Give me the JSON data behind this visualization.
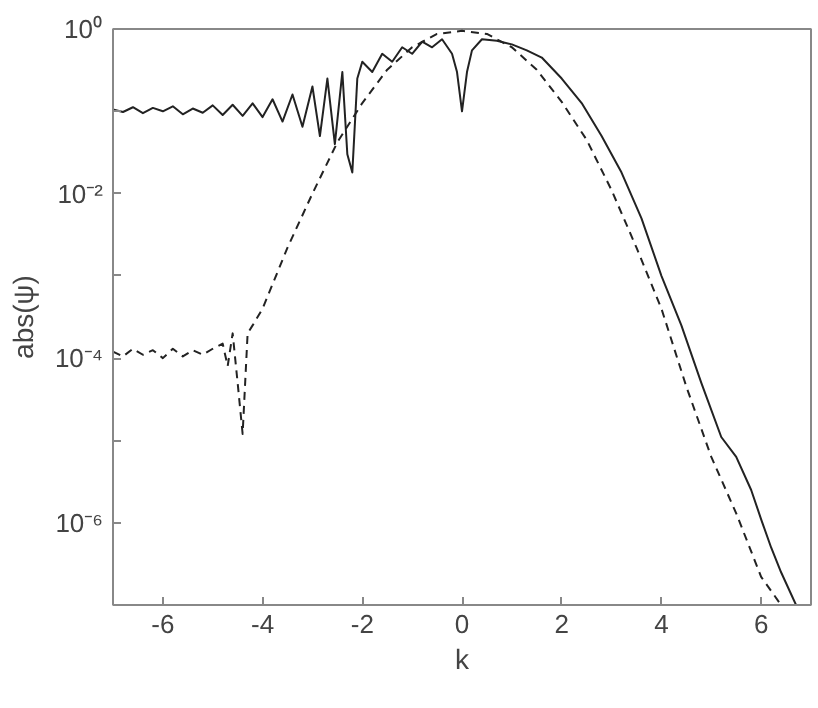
{
  "chart_data": {
    "type": "line",
    "xlabel": "k",
    "ylabel": "abs(ψ)",
    "log": "y",
    "grid": false,
    "xlim": [
      -7,
      7
    ],
    "xticks": [
      -6,
      -4,
      -2,
      0,
      2,
      4,
      6
    ],
    "ylim": [
      1e-07,
      1
    ],
    "yticks": [
      {
        "value": 1,
        "label": "10⁰"
      },
      {
        "value": 0.1,
        "label": null
      },
      {
        "value": 0.01,
        "label": "10⁻²"
      },
      {
        "value": 0.001,
        "label": null
      },
      {
        "value": 0.0001,
        "label": "10⁻⁴"
      },
      {
        "value": 1e-05,
        "label": null
      },
      {
        "value": 1e-06,
        "label": "10⁻⁶"
      },
      {
        "value": 1e-07,
        "label": null
      }
    ],
    "series": [
      {
        "color": "#222222",
        "line_style": "solid",
        "x": [
          -7,
          -6.8,
          -6.6,
          -6.4,
          -6.2,
          -6.0,
          -5.8,
          -5.6,
          -5.4,
          -5.2,
          -5.0,
          -4.8,
          -4.6,
          -4.4,
          -4.2,
          -4.0,
          -3.8,
          -3.6,
          -3.4,
          -3.2,
          -3.0,
          -2.85,
          -2.7,
          -2.55,
          -2.4,
          -2.3,
          -2.2,
          -2.1,
          -2.0,
          -1.8,
          -1.6,
          -1.4,
          -1.2,
          -1.0,
          -0.8,
          -0.6,
          -0.4,
          -0.2,
          -0.1,
          0,
          0.1,
          0.2,
          0.4,
          0.7,
          1.0,
          1.3,
          1.6,
          2.0,
          2.4,
          2.8,
          3.2,
          3.6,
          4.0,
          4.4,
          4.8,
          5.2,
          5.5,
          5.8,
          6.0,
          6.2,
          6.4,
          6.7
        ],
        "values": [
          0.105,
          0.098,
          0.112,
          0.095,
          0.11,
          0.1,
          0.115,
          0.092,
          0.108,
          0.096,
          0.118,
          0.09,
          0.12,
          0.088,
          0.125,
          0.085,
          0.14,
          0.075,
          0.16,
          0.065,
          0.2,
          0.05,
          0.25,
          0.04,
          0.3,
          0.03,
          0.018,
          0.25,
          0.4,
          0.3,
          0.5,
          0.4,
          0.6,
          0.5,
          0.7,
          0.6,
          0.75,
          0.5,
          0.3,
          0.1,
          0.3,
          0.55,
          0.75,
          0.72,
          0.65,
          0.55,
          0.45,
          0.25,
          0.126,
          0.05,
          0.018,
          0.005,
          0.001,
          0.00025,
          5e-05,
          1.1e-05,
          6.3e-06,
          2.5e-06,
          1.1e-06,
          5e-07,
          2.5e-07,
          1e-07
        ]
      },
      {
        "color": "#222222",
        "line_style": "dashed",
        "x": [
          -7,
          -6.8,
          -6.6,
          -6.4,
          -6.2,
          -6.0,
          -5.8,
          -5.6,
          -5.4,
          -5.2,
          -5.0,
          -4.8,
          -4.7,
          -4.6,
          -4.5,
          -4.4,
          -4.3,
          -4.2,
          -4.0,
          -3.5,
          -3.0,
          -2.5,
          -2.0,
          -1.5,
          -1.0,
          -0.5,
          0,
          0.5,
          1.0,
          1.5,
          2.0,
          2.5,
          3.0,
          3.5,
          4.0,
          4.5,
          5.0,
          5.5,
          6.0,
          6.4
        ],
        "values": [
          0.00012,
          0.000105,
          0.00013,
          0.00011,
          0.000125,
          0.0001,
          0.00013,
          0.000105,
          0.000125,
          0.00011,
          0.00013,
          0.00015,
          8e-05,
          0.0002,
          5e-05,
          1.2e-05,
          0.0002,
          0.00025,
          0.0004,
          0.0022,
          0.01,
          0.042,
          0.126,
          0.32,
          0.6,
          0.87,
          0.95,
          0.87,
          0.6,
          0.32,
          0.13,
          0.045,
          0.011,
          0.0022,
          0.0004,
          4.5e-05,
          6.3e-06,
          1.3e-06,
          2.2e-07,
          1e-07
        ]
      }
    ]
  }
}
